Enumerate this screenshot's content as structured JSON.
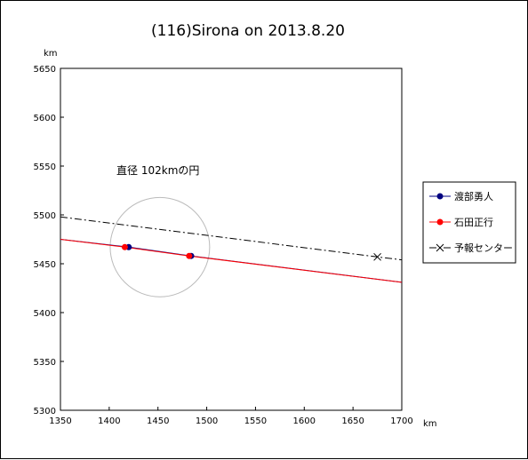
{
  "chart_data": {
    "type": "line",
    "title": "(116)Sirona on 2013.8.20",
    "xunit": "km",
    "yunit": "km",
    "xlim": [
      1350,
      1700
    ],
    "ylim": [
      5300,
      5650
    ],
    "xticks": [
      1350,
      1400,
      1450,
      1500,
      1550,
      1600,
      1650,
      1700
    ],
    "yticks": [
      5300,
      5350,
      5400,
      5450,
      5500,
      5550,
      5600,
      5650
    ],
    "grid": false,
    "legend_position": "right",
    "series": [
      {
        "name": "渡部勇人",
        "color": "#000080",
        "marker": "circle",
        "line_style": "solid",
        "points": [
          [
            1350,
            5475
          ],
          [
            1420,
            5467
          ],
          [
            1484,
            5458
          ],
          [
            1700,
            5431
          ]
        ]
      },
      {
        "name": "石田正行",
        "color": "#ff0000",
        "marker": "circle",
        "line_style": "solid",
        "points": [
          [
            1350,
            5475
          ],
          [
            1416,
            5467
          ],
          [
            1482,
            5458
          ],
          [
            1700,
            5431
          ]
        ]
      },
      {
        "name": "予報センター",
        "color": "#000000",
        "marker": "x",
        "line_style": "dashdot",
        "points": [
          [
            1350,
            5498
          ],
          [
            1675,
            5457
          ],
          [
            1700,
            5454
          ]
        ]
      }
    ],
    "circle": {
      "center": [
        1452,
        5467
      ],
      "diameter": 102,
      "color": "#bbbbbb"
    },
    "annotations": [
      {
        "text": "直径 102kmの円",
        "x": 1450,
        "y": 5542
      }
    ]
  }
}
